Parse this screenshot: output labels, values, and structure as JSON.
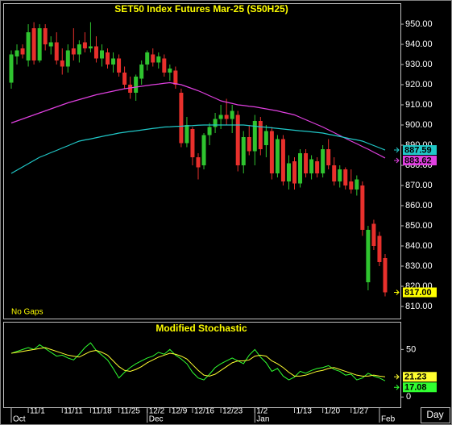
{
  "chart_data": [
    {
      "type": "candlestick",
      "title": "SET50 Index Futures Mar-25 (S50H25)",
      "note": "No Gaps",
      "xlabel": "Day",
      "categories": [
        null,
        null,
        null,
        "11/1",
        null,
        null,
        null,
        null,
        null,
        "11/11",
        null,
        null,
        null,
        null,
        "11/18",
        null,
        null,
        null,
        null,
        "11/25",
        null,
        null,
        null,
        null,
        "12/2",
        null,
        null,
        null,
        "12/9",
        null,
        null,
        null,
        "12/16",
        null,
        null,
        null,
        null,
        "12/23",
        null,
        null,
        null,
        null,
        null,
        "1/2",
        null,
        null,
        null,
        null,
        null,
        null,
        "1/13",
        null,
        null,
        null,
        null,
        "1/20",
        null,
        null,
        null,
        null,
        "1/27",
        null,
        null,
        null,
        null,
        null,
        null
      ],
      "months": [
        "Oct",
        null,
        null,
        null,
        null,
        null,
        null,
        null,
        null,
        null,
        null,
        null,
        null,
        null,
        null,
        null,
        null,
        null,
        null,
        null,
        null,
        null,
        null,
        null,
        "Dec",
        null,
        null,
        null,
        null,
        null,
        null,
        null,
        null,
        null,
        null,
        null,
        null,
        null,
        null,
        null,
        null,
        null,
        null,
        "Jan",
        null,
        null,
        null,
        null,
        null,
        null,
        null,
        null,
        null,
        null,
        null,
        null,
        null,
        null,
        null,
        null,
        null,
        null,
        null,
        null,
        null,
        "Feb",
        null
      ],
      "open": [
        921,
        934,
        938,
        932,
        948,
        932,
        948,
        939,
        941,
        932,
        929,
        938,
        935,
        941,
        938,
        939,
        933,
        936,
        930,
        933,
        926,
        920,
        916,
        923,
        930,
        935,
        931,
        933,
        926,
        927,
        916,
        891,
        898,
        884,
        880,
        895,
        899,
        903,
        905,
        903,
        905,
        880,
        894,
        887,
        902,
        890,
        897,
        876,
        893,
        872,
        882,
        871,
        886,
        876,
        882,
        876,
        888,
        880,
        872,
        878,
        872,
        868,
        870,
        822,
        851,
        845,
        834
      ],
      "high": [
        937,
        940,
        940,
        950,
        951,
        950,
        950,
        944,
        946,
        938,
        940,
        948,
        942,
        946,
        951,
        944,
        940,
        938,
        936,
        935,
        929,
        924,
        925,
        932,
        937,
        938,
        936,
        935,
        930,
        929,
        918,
        904,
        899,
        886,
        896,
        901,
        906,
        910,
        913,
        910,
        907,
        897,
        900,
        905,
        904,
        900,
        899,
        895,
        895,
        885,
        884,
        888,
        888,
        885,
        884,
        890,
        893,
        884,
        880,
        879,
        878,
        875,
        872,
        850,
        853,
        847,
        836
      ],
      "low": [
        918,
        930,
        933,
        929,
        930,
        931,
        937,
        935,
        930,
        925,
        926,
        932,
        931,
        936,
        936,
        931,
        929,
        928,
        926,
        924,
        918,
        913,
        912,
        920,
        927,
        929,
        928,
        924,
        922,
        918,
        889,
        889,
        880,
        873,
        878,
        890,
        896,
        898,
        900,
        896,
        877,
        876,
        885,
        880,
        885,
        884,
        873,
        874,
        870,
        868,
        868,
        869,
        874,
        873,
        874,
        874,
        878,
        870,
        869,
        868,
        866,
        865,
        845,
        818,
        838,
        830,
        815
      ],
      "close": [
        935,
        937,
        935,
        946,
        932,
        948,
        940,
        941,
        932,
        929,
        937,
        935,
        940,
        938,
        939,
        933,
        937,
        930,
        933,
        926,
        920,
        916,
        924,
        930,
        936,
        931,
        934,
        926,
        928,
        920,
        891,
        900,
        884,
        879,
        895,
        899,
        903,
        905,
        903,
        907,
        880,
        894,
        887,
        902,
        888,
        897,
        876,
        893,
        872,
        881,
        871,
        886,
        876,
        883,
        876,
        888,
        880,
        872,
        878,
        870,
        868,
        873,
        848,
        848,
        840,
        832,
        817
      ],
      "up_color": "#2fc42f",
      "down_color": "#e8302c",
      "last_price_label": "817.00",
      "overlays": [
        {
          "color": "#e040e0",
          "values": [
            901,
            902,
            903,
            904,
            905,
            906,
            907,
            908,
            909,
            910,
            911,
            911.8,
            912.6,
            913.4,
            914.2,
            915,
            915.6,
            916.2,
            916.8,
            917.4,
            918,
            918.4,
            918.8,
            919.2,
            919.6,
            920,
            920.3,
            920.7,
            921,
            920.5,
            920,
            919,
            918,
            917,
            915.8,
            914.5,
            913.3,
            912,
            911.3,
            910.7,
            910,
            909.7,
            909.3,
            909,
            908.5,
            908,
            907.5,
            907,
            906.3,
            905.7,
            905,
            903.8,
            902.6,
            901.4,
            900.2,
            899,
            897.6,
            896.2,
            894.8,
            893.4,
            892,
            890.7,
            889.3,
            888,
            886.5,
            885.1,
            883.62
          ]
        },
        {
          "color": "#20c8c8",
          "values": [
            876,
            877.6,
            879.2,
            880.8,
            882.4,
            884,
            885.1,
            886.3,
            887.4,
            888.6,
            889.7,
            890.9,
            892,
            892.6,
            893.1,
            893.7,
            894.3,
            894.9,
            895.4,
            896,
            896.4,
            896.8,
            897.1,
            897.5,
            897.9,
            898.3,
            898.6,
            899,
            899.1,
            899.3,
            899.4,
            899.6,
            899.7,
            899.9,
            900,
            900,
            900,
            900,
            900,
            900,
            900,
            900,
            899.7,
            899.4,
            899.1,
            898.9,
            898.6,
            898.3,
            898,
            897.7,
            897.4,
            897.1,
            896.9,
            896.6,
            896.3,
            896,
            895.4,
            894.9,
            894.3,
            893.7,
            893.1,
            892.6,
            892,
            890.9,
            889.8,
            888.7,
            887.59
          ]
        }
      ],
      "ylim": [
        804,
        960
      ],
      "yticks": [
        {
          "value": 950,
          "label": "950.00"
        },
        {
          "value": 940,
          "label": "940.00"
        },
        {
          "value": 930,
          "label": "930.00"
        },
        {
          "value": 920,
          "label": "920.00"
        },
        {
          "value": 910,
          "label": "910.00"
        },
        {
          "value": 900,
          "label": "900.00"
        },
        {
          "value": 890,
          "label": "890.00"
        },
        {
          "value": 880,
          "label": "880.00"
        },
        {
          "value": 870,
          "label": "870.00"
        },
        {
          "value": 860,
          "label": "860.00"
        },
        {
          "value": 850,
          "label": "850.00"
        },
        {
          "value": 840,
          "label": "840.00"
        },
        {
          "value": 830,
          "label": "830.00"
        },
        {
          "value": 820,
          "label": "820.00"
        },
        {
          "value": 810,
          "label": "810.00"
        }
      ]
    },
    {
      "type": "line",
      "title": "Modified Stochastic",
      "series": [
        {
          "color": "#30ff30",
          "values": [
            46,
            48,
            50,
            52,
            50,
            55,
            51,
            47,
            43,
            44,
            41,
            39,
            45,
            52,
            57,
            49,
            44,
            39,
            30,
            20,
            26,
            31,
            35,
            38,
            41,
            43,
            47,
            45,
            50,
            44,
            40,
            35,
            26,
            20,
            18,
            24,
            31,
            35,
            38,
            41,
            38,
            35,
            44,
            50,
            42,
            36,
            27,
            30,
            22,
            18,
            21,
            27,
            25,
            28,
            30,
            31,
            33,
            29,
            27,
            23,
            24,
            18,
            20,
            25,
            22,
            20,
            17.08
          ]
        },
        {
          "color": "#ffff30",
          "values": [
            46,
            47,
            48,
            49,
            50,
            51,
            52,
            50,
            48,
            46,
            44,
            43,
            42,
            45,
            48,
            49,
            47,
            44,
            38,
            32,
            28,
            27,
            29,
            32,
            36,
            39,
            42,
            44,
            46,
            45,
            43,
            40,
            34,
            28,
            23,
            22,
            24,
            28,
            32,
            36,
            38,
            38,
            39,
            43,
            44,
            43,
            38,
            35,
            31,
            26,
            22,
            22,
            23,
            25,
            27,
            28,
            30,
            31,
            29,
            27,
            25,
            23,
            22,
            22,
            23,
            22,
            21.23
          ]
        }
      ],
      "ylim": [
        -10.8,
        78.3
      ],
      "yticks": [
        50,
        0
      ]
    }
  ]
}
